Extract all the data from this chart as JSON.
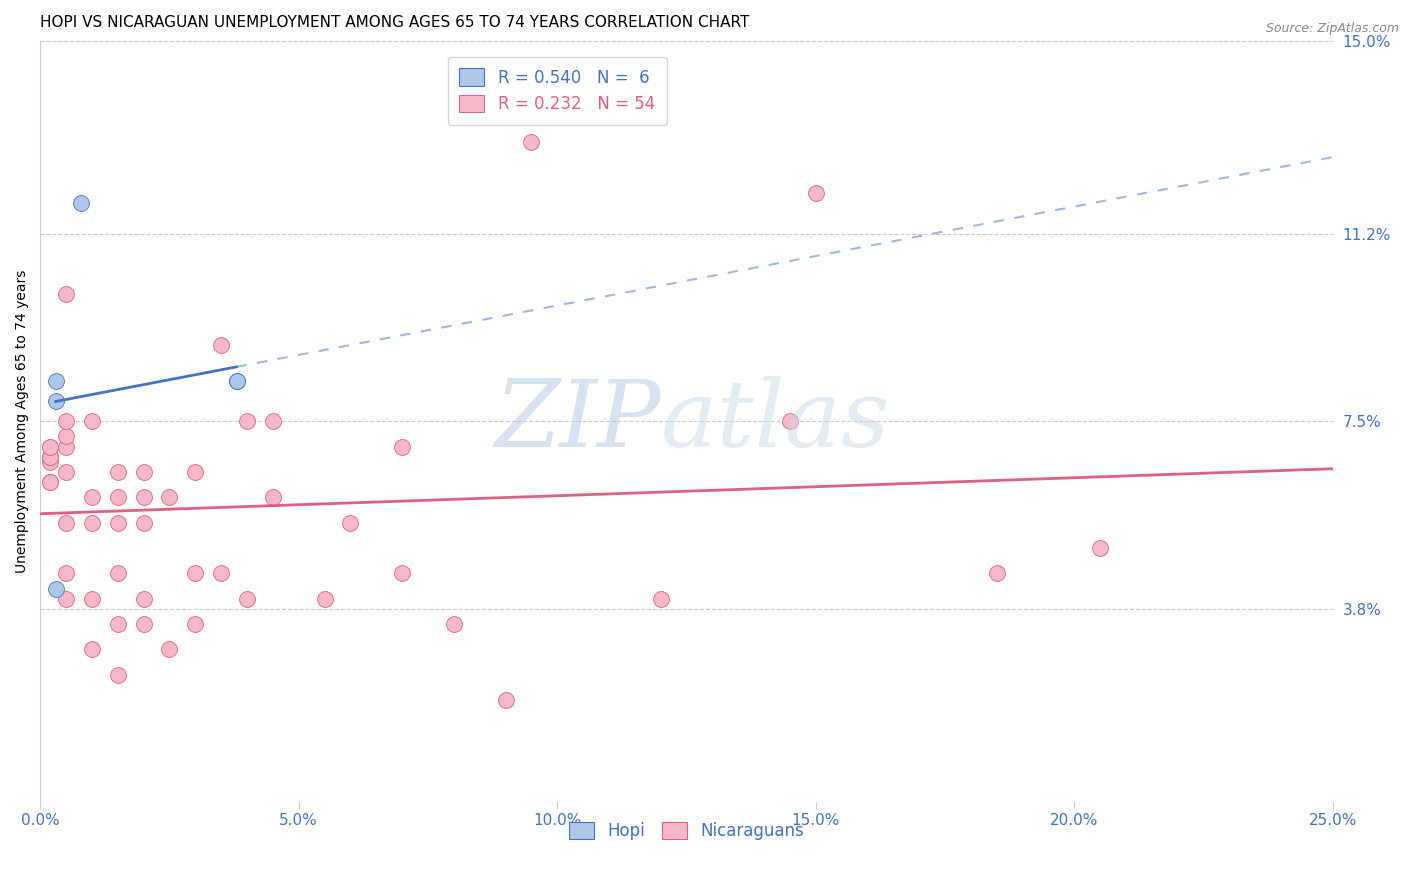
{
  "title": "HOPI VS NICARAGUAN UNEMPLOYMENT AMONG AGES 65 TO 74 YEARS CORRELATION CHART",
  "source": "Source: ZipAtlas.com",
  "xlabel": "",
  "ylabel": "Unemployment Among Ages 65 to 74 years",
  "xlim": [
    0.0,
    0.25
  ],
  "ylim": [
    0.0,
    0.15
  ],
  "xticks": [
    0.0,
    0.05,
    0.1,
    0.15,
    0.2,
    0.25
  ],
  "xticklabels": [
    "0.0%",
    "5.0%",
    "10.0%",
    "15.0%",
    "20.0%",
    "25.0%"
  ],
  "ytick_positions": [
    0.038,
    0.075,
    0.112,
    0.15
  ],
  "ytick_labels": [
    "3.8%",
    "7.5%",
    "11.2%",
    "15.0%"
  ],
  "hopi_x": [
    0.008,
    0.003,
    0.003,
    0.038,
    0.038,
    0.003
  ],
  "hopi_y": [
    0.118,
    0.083,
    0.079,
    0.083,
    0.083,
    0.042
  ],
  "nicaraguan_x": [
    0.002,
    0.002,
    0.002,
    0.002,
    0.002,
    0.002,
    0.002,
    0.005,
    0.005,
    0.005,
    0.005,
    0.005,
    0.005,
    0.005,
    0.005,
    0.01,
    0.01,
    0.01,
    0.01,
    0.01,
    0.015,
    0.015,
    0.015,
    0.015,
    0.015,
    0.015,
    0.02,
    0.02,
    0.02,
    0.02,
    0.02,
    0.025,
    0.025,
    0.03,
    0.03,
    0.03,
    0.035,
    0.035,
    0.04,
    0.04,
    0.045,
    0.045,
    0.055,
    0.06,
    0.07,
    0.07,
    0.08,
    0.09,
    0.095,
    0.12,
    0.145,
    0.15,
    0.185,
    0.205
  ],
  "nicaraguan_y": [
    0.063,
    0.063,
    0.067,
    0.068,
    0.068,
    0.07,
    0.07,
    0.04,
    0.045,
    0.055,
    0.065,
    0.07,
    0.072,
    0.075,
    0.1,
    0.03,
    0.04,
    0.055,
    0.06,
    0.075,
    0.025,
    0.035,
    0.045,
    0.055,
    0.06,
    0.065,
    0.035,
    0.04,
    0.055,
    0.06,
    0.065,
    0.03,
    0.06,
    0.035,
    0.045,
    0.065,
    0.045,
    0.09,
    0.04,
    0.075,
    0.06,
    0.075,
    0.04,
    0.055,
    0.045,
    0.07,
    0.035,
    0.02,
    0.13,
    0.04,
    0.075,
    0.12,
    0.045,
    0.05
  ],
  "hopi_color": "#aec6e8",
  "nicaraguan_color": "#f5b8c8",
  "hopi_line_color": "#4472c4",
  "nicaraguan_line_color": "#e06080",
  "hopi_R": 0.54,
  "hopi_N": 6,
  "nicaraguan_R": 0.232,
  "nicaraguan_N": 54,
  "background_color": "#ffffff",
  "title_fontsize": 11,
  "axis_label_fontsize": 10,
  "tick_fontsize": 11,
  "legend_fontsize": 12
}
